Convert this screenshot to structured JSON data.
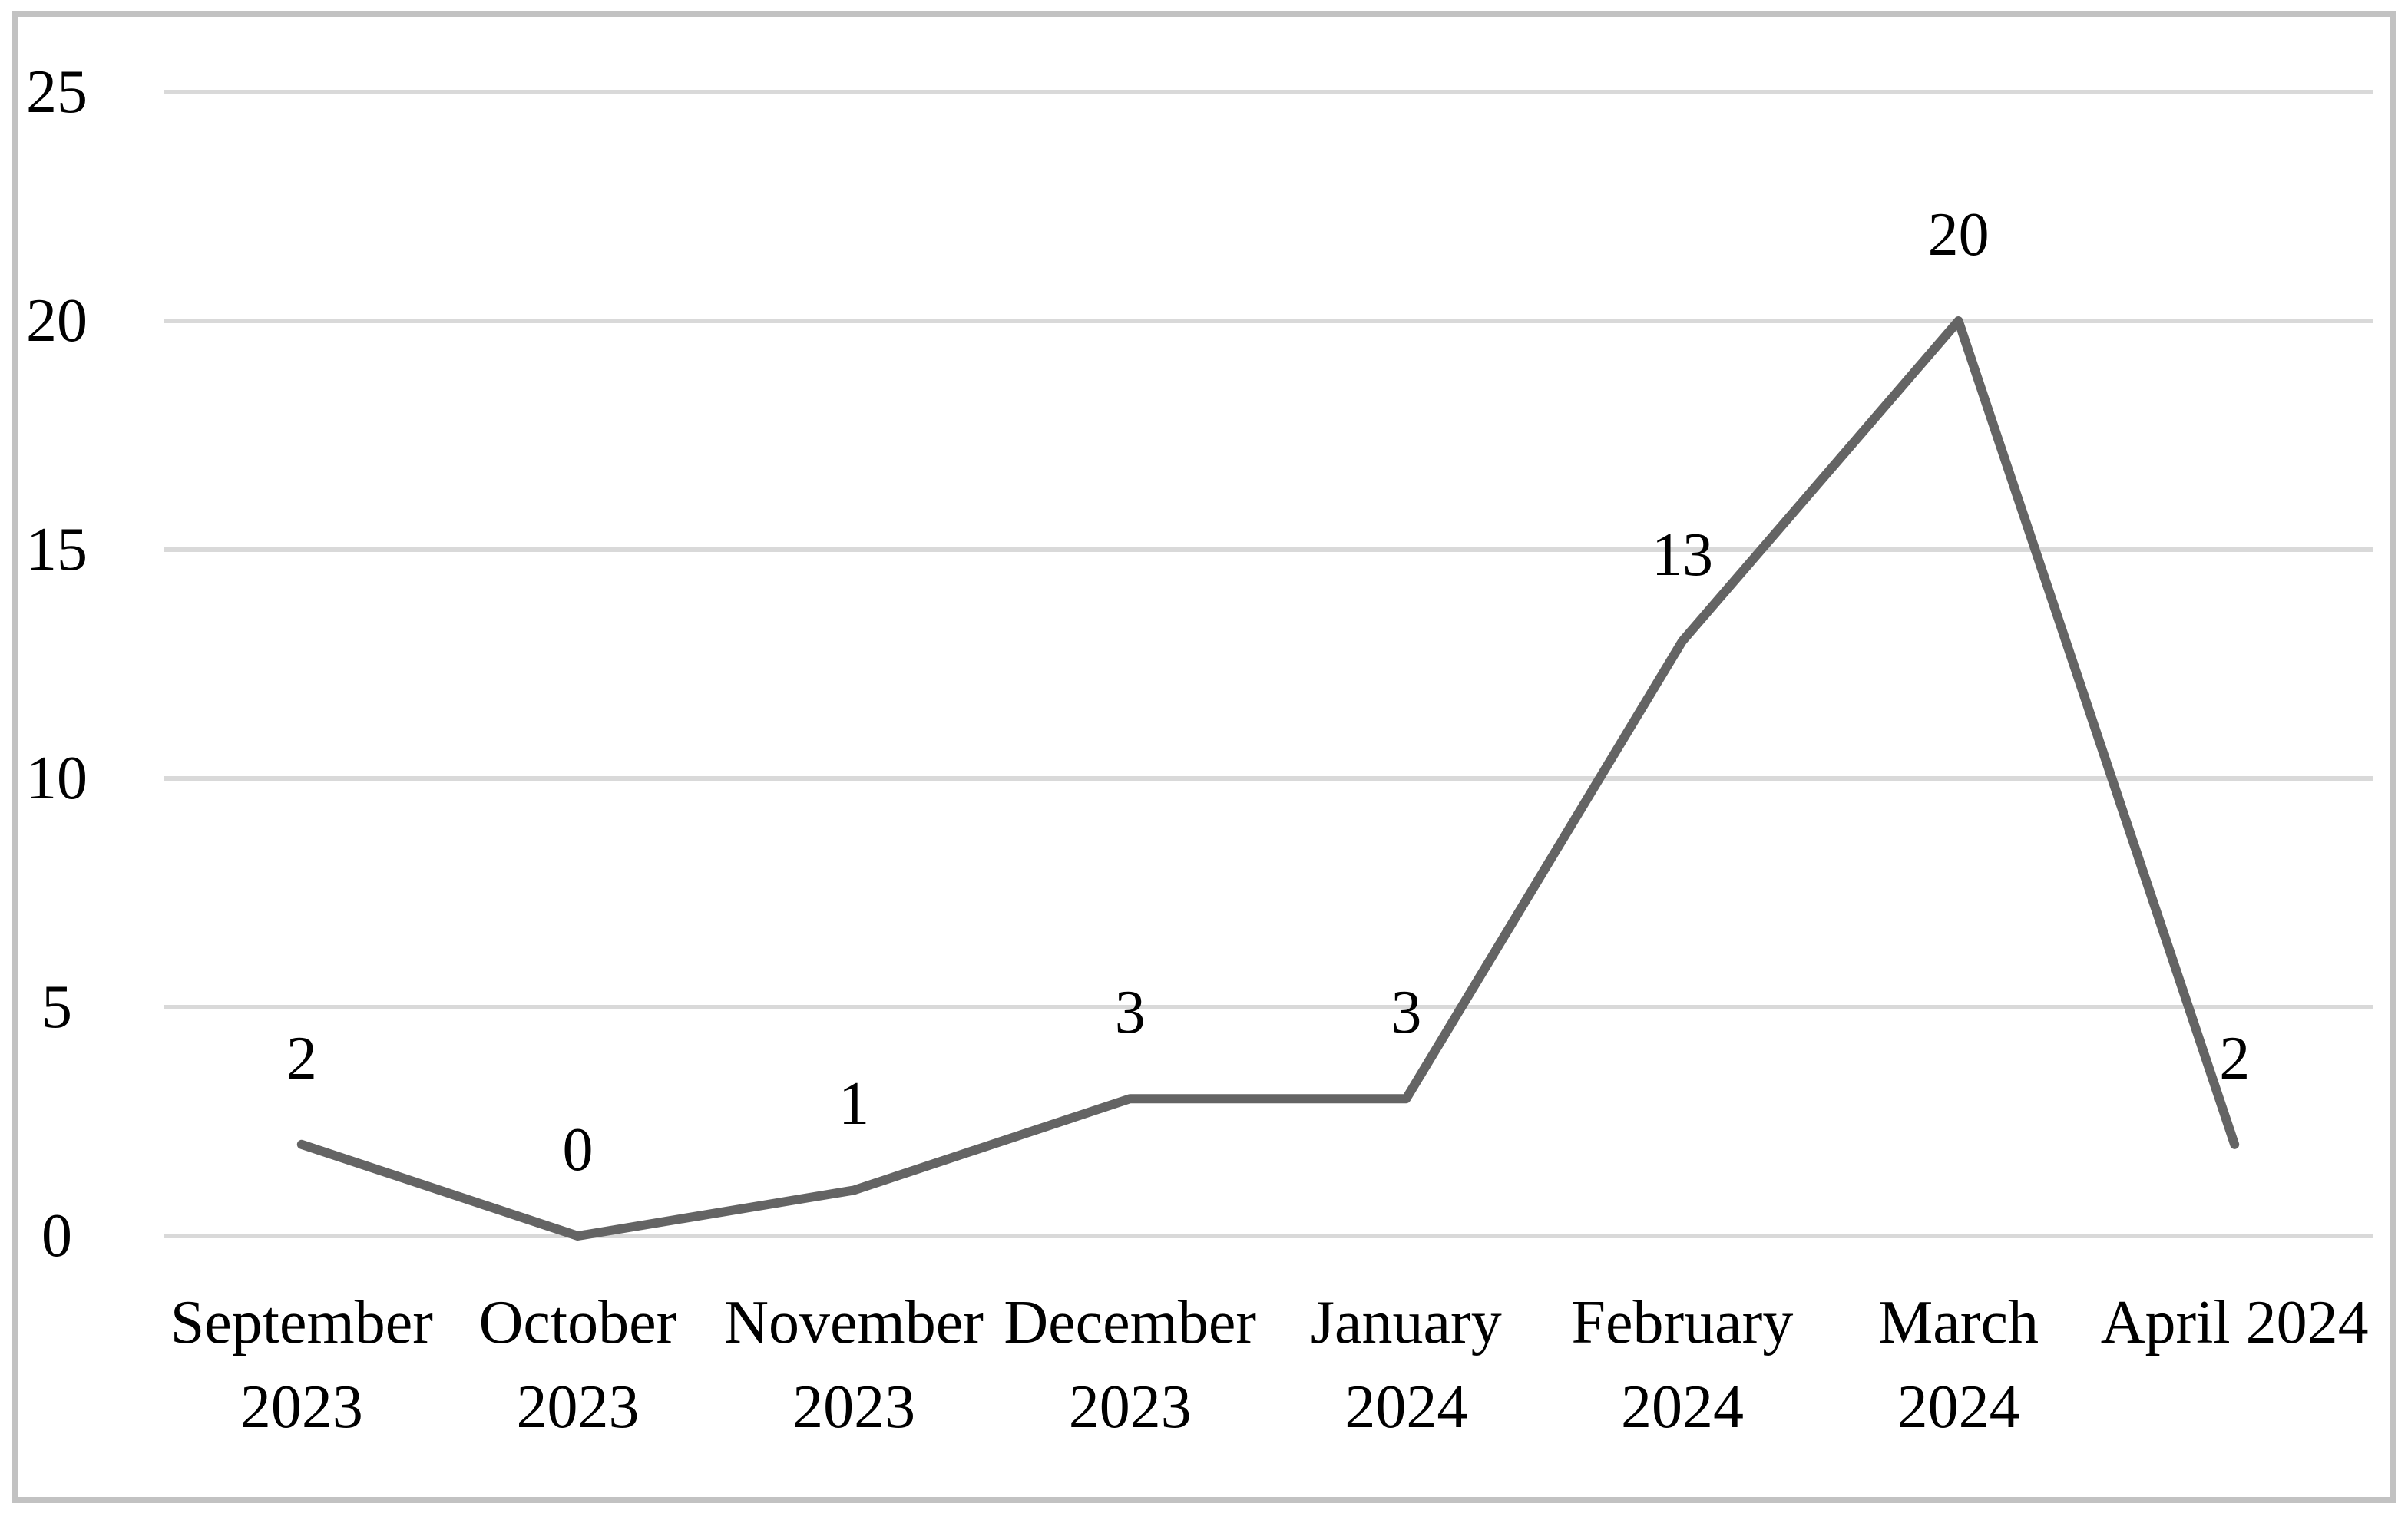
{
  "chart_data": {
    "type": "line",
    "categories": [
      "September 2023",
      "October 2023",
      "November 2023",
      "December 2023",
      "January 2024",
      "February 2024",
      "March 2024",
      "April 2024"
    ],
    "x_tick_label_lines": [
      [
        "September",
        "2023"
      ],
      [
        "October",
        "2023"
      ],
      [
        "November",
        "2023"
      ],
      [
        "December",
        "2023"
      ],
      [
        "January",
        "2024"
      ],
      [
        "February",
        "2024"
      ],
      [
        "March",
        "2024"
      ],
      [
        "April 2024"
      ]
    ],
    "values": [
      2,
      0,
      1,
      3,
      3,
      13,
      20,
      2
    ],
    "yticks": [
      0,
      5,
      10,
      15,
      20,
      25
    ],
    "ylim": [
      0,
      25
    ],
    "grid": "horizontal",
    "legend": "none",
    "colors": {
      "line": "#646464",
      "gridline": "#d9d9d9",
      "frame_border": "#c2c2c2",
      "background": "#ffffff",
      "text": "#000000"
    }
  }
}
